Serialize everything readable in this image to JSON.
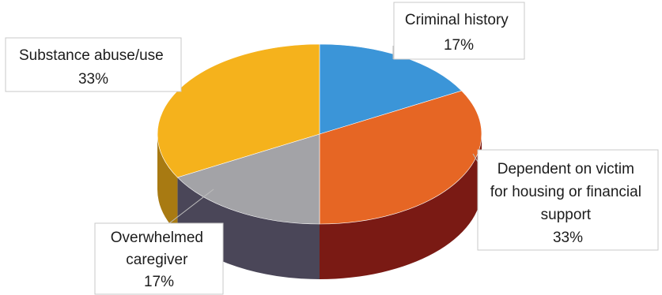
{
  "chart_data": {
    "type": "pie",
    "variant": "3d",
    "unit": "%",
    "slices": [
      {
        "name": "Criminal history",
        "value": 17,
        "label_lines": [
          "Criminal history",
          "17%"
        ],
        "color": "#3b95d8",
        "side_color": "#1f5e94"
      },
      {
        "name": "Dependent on victim for housing or financial support",
        "value": 33,
        "label_lines": [
          "Dependent on victim",
          "for housing or financial",
          "support",
          "33%"
        ],
        "color": "#e66624",
        "side_color": "#7a1a14"
      },
      {
        "name": "Overwhelmed caregiver",
        "value": 17,
        "label_lines": [
          "Overwhelmed",
          "caregiver",
          "17%"
        ],
        "color": "#a3a3a7",
        "side_color": "#4a4658"
      },
      {
        "name": "Substance abuse/use",
        "value": 33,
        "label_lines": [
          "Substance abuse/use",
          "33%"
        ],
        "color": "#f5b21c",
        "side_color": "#a87a12"
      }
    ]
  }
}
